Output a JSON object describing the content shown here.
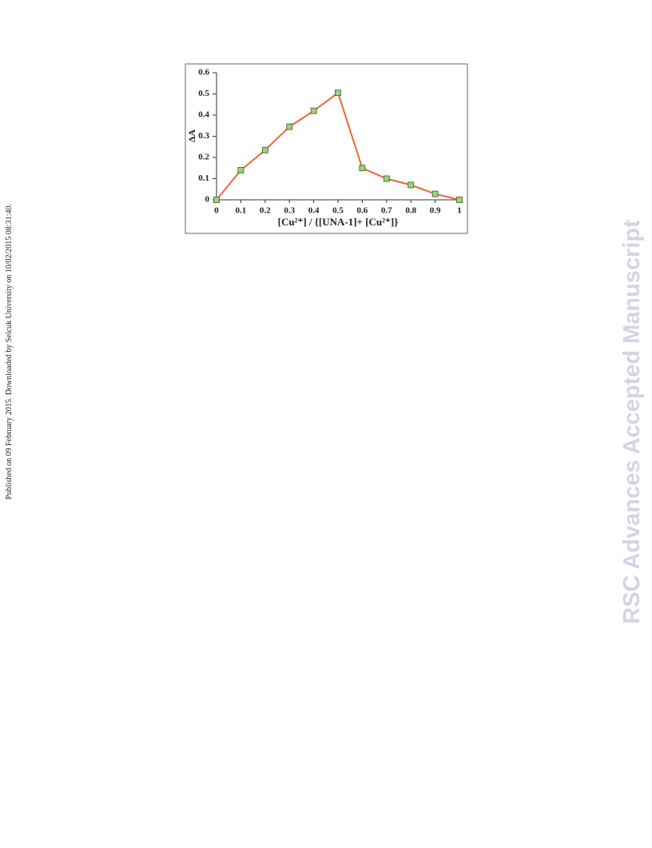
{
  "chart_data": {
    "type": "line",
    "x_label": "[Cu²⁺] / {[UNA-1]+ [Cu²⁺]}",
    "y_label": "ΔA",
    "x": [
      0,
      0.1,
      0.2,
      0.3,
      0.4,
      0.5,
      0.6,
      0.7,
      0.8,
      0.9,
      1
    ],
    "values": [
      0,
      0.14,
      0.235,
      0.345,
      0.42,
      0.505,
      0.15,
      0.1,
      0.07,
      0.028,
      0
    ],
    "color": "#f0643c",
    "marker_color": "#94d67e",
    "xlim": [
      0,
      1
    ],
    "xticks": [
      0,
      0.1,
      0.2,
      0.3,
      0.4,
      0.5,
      0.6,
      0.7,
      0.8,
      0.9,
      1
    ],
    "ylim": [
      0,
      0.6
    ],
    "yticks": [
      0,
      0.1,
      0.2,
      0.3,
      0.4,
      0.5,
      0.6
    ]
  },
  "publication_note": "Published on 09 February 2015. Downloaded by Selcuk University on 10/02/2015 08:31:40.",
  "watermark": "RSC Advances Accepted Manuscript"
}
